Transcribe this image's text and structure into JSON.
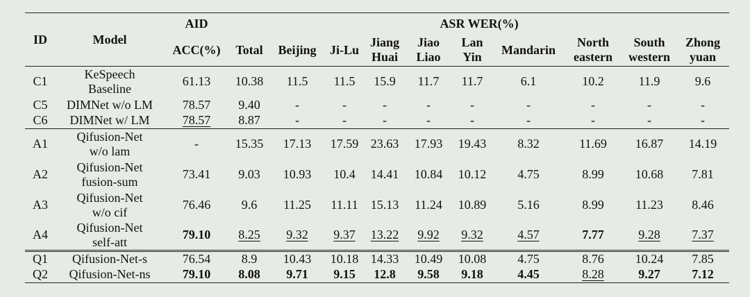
{
  "table": {
    "header": {
      "id": "ID",
      "model": "Model",
      "aid": "AID",
      "asr": "ASR WER(%)",
      "acc": "ACC(%)",
      "cols": [
        [
          "Total"
        ],
        [
          "Beijing"
        ],
        [
          "Ji-Lu"
        ],
        [
          "Jiang",
          "Huai"
        ],
        [
          "Jiao",
          "Liao"
        ],
        [
          "Lan",
          "Yin"
        ],
        [
          "Mandarin"
        ],
        [
          "North",
          "eastern"
        ],
        [
          "South",
          "western"
        ],
        [
          "Zhong",
          "yuan"
        ]
      ]
    },
    "groups": [
      {
        "rows": [
          {
            "id": "C1",
            "model": [
              "KeSpeech",
              "Baseline"
            ],
            "values": [
              "61.13",
              "10.38",
              "11.5",
              "11.5",
              "15.9",
              "11.7",
              "11.7",
              "6.1",
              "10.2",
              "11.9",
              "9.6"
            ],
            "bold": [],
            "underline": []
          },
          {
            "id": "C5",
            "model": [
              "DIMNet w/o LM"
            ],
            "values": [
              "78.57",
              "9.40",
              "-",
              "-",
              "-",
              "-",
              "-",
              "-",
              "-",
              "-",
              "-"
            ],
            "bold": [],
            "underline": []
          },
          {
            "id": "C6",
            "model": [
              "DIMNet w/ LM"
            ],
            "values": [
              "78.57",
              "8.87",
              "-",
              "-",
              "-",
              "-",
              "-",
              "-",
              "-",
              "-",
              "-"
            ],
            "bold": [],
            "underline": [
              0
            ]
          }
        ]
      },
      {
        "rows": [
          {
            "id": "A1",
            "model": [
              "Qifusion-Net",
              "w/o lam"
            ],
            "values": [
              "-",
              "15.35",
              "17.13",
              "17.59",
              "23.63",
              "17.93",
              "19.43",
              "8.32",
              "11.69",
              "16.87",
              "14.19"
            ],
            "bold": [],
            "underline": []
          },
          {
            "id": "A2",
            "model": [
              "Qifusion-Net",
              "fusion-sum"
            ],
            "values": [
              "73.41",
              "9.03",
              "10.93",
              "10.4",
              "14.41",
              "10.84",
              "10.12",
              "4.75",
              "8.99",
              "10.68",
              "7.81"
            ],
            "bold": [],
            "underline": []
          },
          {
            "id": "A3",
            "model": [
              "Qifusion-Net",
              "w/o cif"
            ],
            "values": [
              "76.46",
              "9.6",
              "11.25",
              "11.11",
              "15.13",
              "11.24",
              "10.89",
              "5.16",
              "8.99",
              "11.23",
              "8.46"
            ],
            "bold": [],
            "underline": []
          },
          {
            "id": "A4",
            "model": [
              "Qifusion-Net",
              "self-att"
            ],
            "values": [
              "79.10",
              "8.25",
              "9.32",
              "9.37",
              "13.22",
              "9.92",
              "9.32",
              "4.57",
              "7.77",
              "9.28",
              "7.37"
            ],
            "bold": [
              0,
              8
            ],
            "underline": [
              1,
              2,
              3,
              4,
              5,
              6,
              7,
              9,
              10
            ]
          }
        ]
      },
      {
        "rows": [
          {
            "id": "Q1",
            "model": [
              "Qifusion-Net-s"
            ],
            "values": [
              "76.54",
              "8.9",
              "10.43",
              "10.18",
              "14.33",
              "10.49",
              "10.08",
              "4.75",
              "8.76",
              "10.24",
              "7.85"
            ],
            "bold": [],
            "underline": []
          },
          {
            "id": "Q2",
            "model": [
              "Qifusion-Net-ns"
            ],
            "values": [
              "79.10",
              "8.08",
              "9.71",
              "9.15",
              "12.8",
              "9.58",
              "9.18",
              "4.45",
              "8.28",
              "9.27",
              "7.12"
            ],
            "bold": [
              0,
              1,
              2,
              3,
              4,
              5,
              6,
              7,
              9,
              10
            ],
            "underline": [
              8
            ]
          }
        ]
      }
    ]
  }
}
